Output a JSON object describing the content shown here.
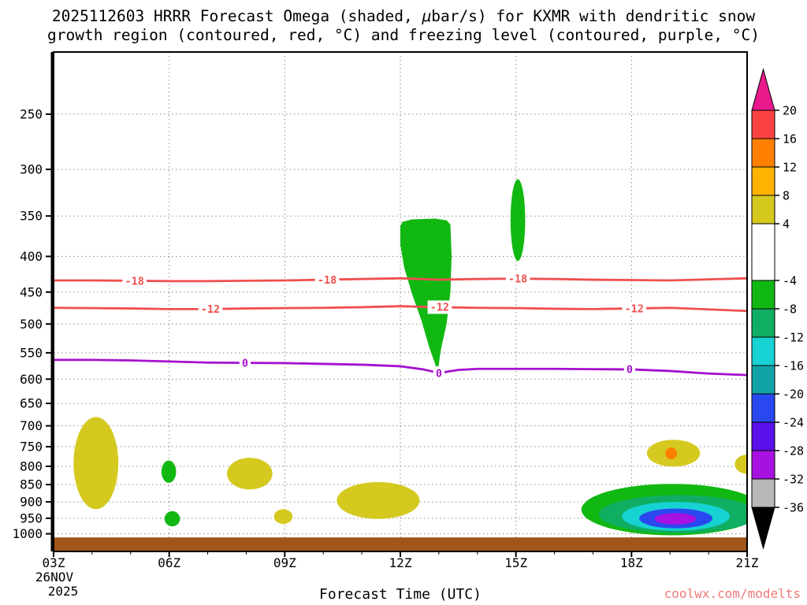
{
  "title": {
    "line1_pre": "2025112603 HRRR Forecast Omega (shaded, ",
    "mu": "μ",
    "line1_post": "bar/s) for KXMR with dendritic snow",
    "line2": "growth region (contoured, red, °C) and freezing level (contoured, purple, °C)"
  },
  "x_axis_label": "Forecast Time (UTC)",
  "watermark": "coolwx.com/modelts",
  "watermark_color": "#f07878",
  "chart_data": {
    "type": "filled_contour_time_height_section",
    "x_range": [
      3,
      21
    ],
    "x_ticks": [
      {
        "t": 3,
        "label": "03Z"
      },
      {
        "t": 6,
        "label": "06Z"
      },
      {
        "t": 9,
        "label": "09Z"
      },
      {
        "t": 12,
        "label": "12Z"
      },
      {
        "t": 15,
        "label": "15Z"
      },
      {
        "t": 18,
        "label": "18Z"
      },
      {
        "t": 21,
        "label": "21Z"
      }
    ],
    "x_date": [
      "26NOV",
      "2025"
    ],
    "p_top": 203.6,
    "p_bottom": 1060,
    "y_ticks": [
      250,
      300,
      350,
      400,
      450,
      500,
      550,
      600,
      650,
      700,
      750,
      800,
      850,
      900,
      950,
      1000
    ],
    "grid_color": "#8a8a8a",
    "palette": {
      "yellow": "#d5c91f",
      "orange": "#ff8000",
      "green": "#12b812",
      "seagreen": "#0fae63",
      "cyan": "#16d2d2",
      "blue": "#2948ef",
      "purple": "#a812e0"
    },
    "shaded_regions": [
      {
        "shape": "ellipse",
        "color": "yellow",
        "t": [
          3.52,
          4.68
        ],
        "p": [
          680,
          922
        ]
      },
      {
        "shape": "ellipse",
        "color": "green",
        "t": [
          5.8,
          6.18
        ],
        "p": [
          785,
          845
        ]
      },
      {
        "shape": "ellipse",
        "color": "green",
        "t": [
          5.88,
          6.28
        ],
        "p": [
          928,
          976
        ]
      },
      {
        "shape": "ellipse",
        "color": "yellow",
        "t": [
          7.5,
          8.68
        ],
        "p": [
          778,
          864
        ]
      },
      {
        "shape": "ellipse",
        "color": "yellow",
        "t": [
          8.72,
          9.2
        ],
        "p": [
          922,
          968
        ]
      },
      {
        "shape": "ellipse",
        "color": "yellow",
        "t": [
          10.35,
          12.5
        ],
        "p": [
          843,
          952
        ]
      },
      {
        "shape": "polygon",
        "color": "green",
        "points": [
          [
            12.0,
            362
          ],
          [
            12.05,
            357
          ],
          [
            12.3,
            354
          ],
          [
            12.9,
            353
          ],
          [
            13.2,
            355
          ],
          [
            13.3,
            360
          ],
          [
            13.33,
            400
          ],
          [
            13.3,
            450
          ],
          [
            13.2,
            500
          ],
          [
            13.05,
            545
          ],
          [
            12.97,
            586
          ],
          [
            12.9,
            570
          ],
          [
            12.75,
            540
          ],
          [
            12.55,
            495
          ],
          [
            12.3,
            452
          ],
          [
            12.1,
            415
          ],
          [
            12.0,
            385
          ]
        ]
      },
      {
        "shape": "ellipse",
        "color": "green",
        "t": [
          14.86,
          15.24
        ],
        "p": [
          310,
          406
        ]
      },
      {
        "shape": "ellipse",
        "color": "yellow",
        "t": [
          18.4,
          19.78
        ],
        "p": [
          733,
          801
        ]
      },
      {
        "shape": "ellipse",
        "color": "orange",
        "t": [
          18.88,
          19.18
        ],
        "p": [
          752,
          782
        ]
      },
      {
        "shape": "ellipse",
        "color": "green",
        "t": [
          16.7,
          21.4
        ],
        "p": [
          848,
          1005
        ]
      },
      {
        "shape": "ellipse",
        "color": "seagreen",
        "t": [
          17.15,
          21.3
        ],
        "p": [
          880,
          998
        ]
      },
      {
        "shape": "ellipse",
        "color": "cyan",
        "t": [
          17.75,
          20.55
        ],
        "p": [
          900,
          990
        ]
      },
      {
        "shape": "ellipse",
        "color": "blue",
        "t": [
          18.2,
          20.1
        ],
        "p": [
          920,
          982
        ]
      },
      {
        "shape": "ellipse",
        "color": "purple",
        "t": [
          18.6,
          19.68
        ],
        "p": [
          934,
          970
        ]
      },
      {
        "shape": "ellipse",
        "color": "yellow",
        "t": [
          20.68,
          21.3
        ],
        "p": [
          770,
          820
        ]
      }
    ],
    "contours": [
      {
        "value": -18,
        "color": "#f04f4f",
        "width": 2.8,
        "points": [
          [
            3,
            433
          ],
          [
            4,
            433
          ],
          [
            5,
            433.5
          ],
          [
            6,
            434
          ],
          [
            7,
            434
          ],
          [
            8,
            433.5
          ],
          [
            9,
            433
          ],
          [
            10,
            432
          ],
          [
            11,
            431
          ],
          [
            12,
            430
          ],
          [
            13,
            432
          ],
          [
            14,
            431
          ],
          [
            15,
            430.5
          ],
          [
            16,
            431
          ],
          [
            17,
            432
          ],
          [
            18,
            432.5
          ],
          [
            19,
            433
          ],
          [
            20,
            431.5
          ],
          [
            21,
            430
          ]
        ],
        "labels": [
          5.1,
          10.1,
          15.05
        ]
      },
      {
        "value": -12,
        "color": "#f04f4f",
        "width": 2.8,
        "points": [
          [
            3,
            474
          ],
          [
            4,
            474.5
          ],
          [
            5,
            475
          ],
          [
            6,
            476
          ],
          [
            7,
            476
          ],
          [
            8,
            475
          ],
          [
            9,
            474.5
          ],
          [
            10,
            474
          ],
          [
            11,
            473
          ],
          [
            12,
            471.5
          ],
          [
            13,
            473
          ],
          [
            14,
            474
          ],
          [
            15,
            474.5
          ],
          [
            16,
            475.5
          ],
          [
            17,
            476
          ],
          [
            18,
            475
          ],
          [
            19,
            474
          ],
          [
            20,
            476.5
          ],
          [
            21,
            479
          ]
        ],
        "labels": [
          7.07,
          13.02,
          18.07
        ]
      },
      {
        "value": 0,
        "color": "#a511cf",
        "width": 2.8,
        "points": [
          [
            3,
            563
          ],
          [
            4,
            563
          ],
          [
            5,
            564
          ],
          [
            6,
            566
          ],
          [
            7,
            568
          ],
          [
            8,
            568.5
          ],
          [
            9,
            569
          ],
          [
            10,
            570.5
          ],
          [
            11,
            572
          ],
          [
            12,
            575
          ],
          [
            12.6,
            581
          ],
          [
            13,
            588
          ],
          [
            13.5,
            582
          ],
          [
            14,
            580
          ],
          [
            15,
            580
          ],
          [
            16,
            580
          ],
          [
            17,
            580.5
          ],
          [
            18,
            581
          ],
          [
            19,
            584
          ],
          [
            20,
            589
          ],
          [
            21,
            592
          ]
        ],
        "labels": [
          7.97,
          13.0,
          17.95
        ]
      }
    ],
    "surface_bar": {
      "p_top": 1012,
      "color": "#a0551a"
    },
    "colorbar": {
      "ticks": [
        20,
        16,
        12,
        8,
        4,
        -4,
        -8,
        -12,
        -16,
        -20,
        -24,
        -28,
        -32,
        -36
      ],
      "segments": [
        {
          "hi": 20,
          "lo": 16,
          "color": "#fa4242"
        },
        {
          "hi": 16,
          "lo": 12,
          "color": "#ff8000"
        },
        {
          "hi": 12,
          "lo": 8,
          "color": "#ffb300"
        },
        {
          "hi": 8,
          "lo": 4,
          "color": "#d5c91f"
        },
        {
          "hi": 4,
          "lo": -4,
          "color": "#ffffff"
        },
        {
          "hi": -4,
          "lo": -8,
          "color": "#12b812"
        },
        {
          "hi": -8,
          "lo": -12,
          "color": "#0fae63"
        },
        {
          "hi": -12,
          "lo": -16,
          "color": "#16d2d2"
        },
        {
          "hi": -16,
          "lo": -20,
          "color": "#12a3a8"
        },
        {
          "hi": -20,
          "lo": -24,
          "color": "#2948ef"
        },
        {
          "hi": -24,
          "lo": -28,
          "color": "#5a10e8"
        },
        {
          "hi": -28,
          "lo": -32,
          "color": "#a812e0"
        },
        {
          "hi": -32,
          "lo": -36,
          "color": "#b8b8b8"
        }
      ],
      "over_color": "#e9198c",
      "under_color": "#000000"
    }
  }
}
